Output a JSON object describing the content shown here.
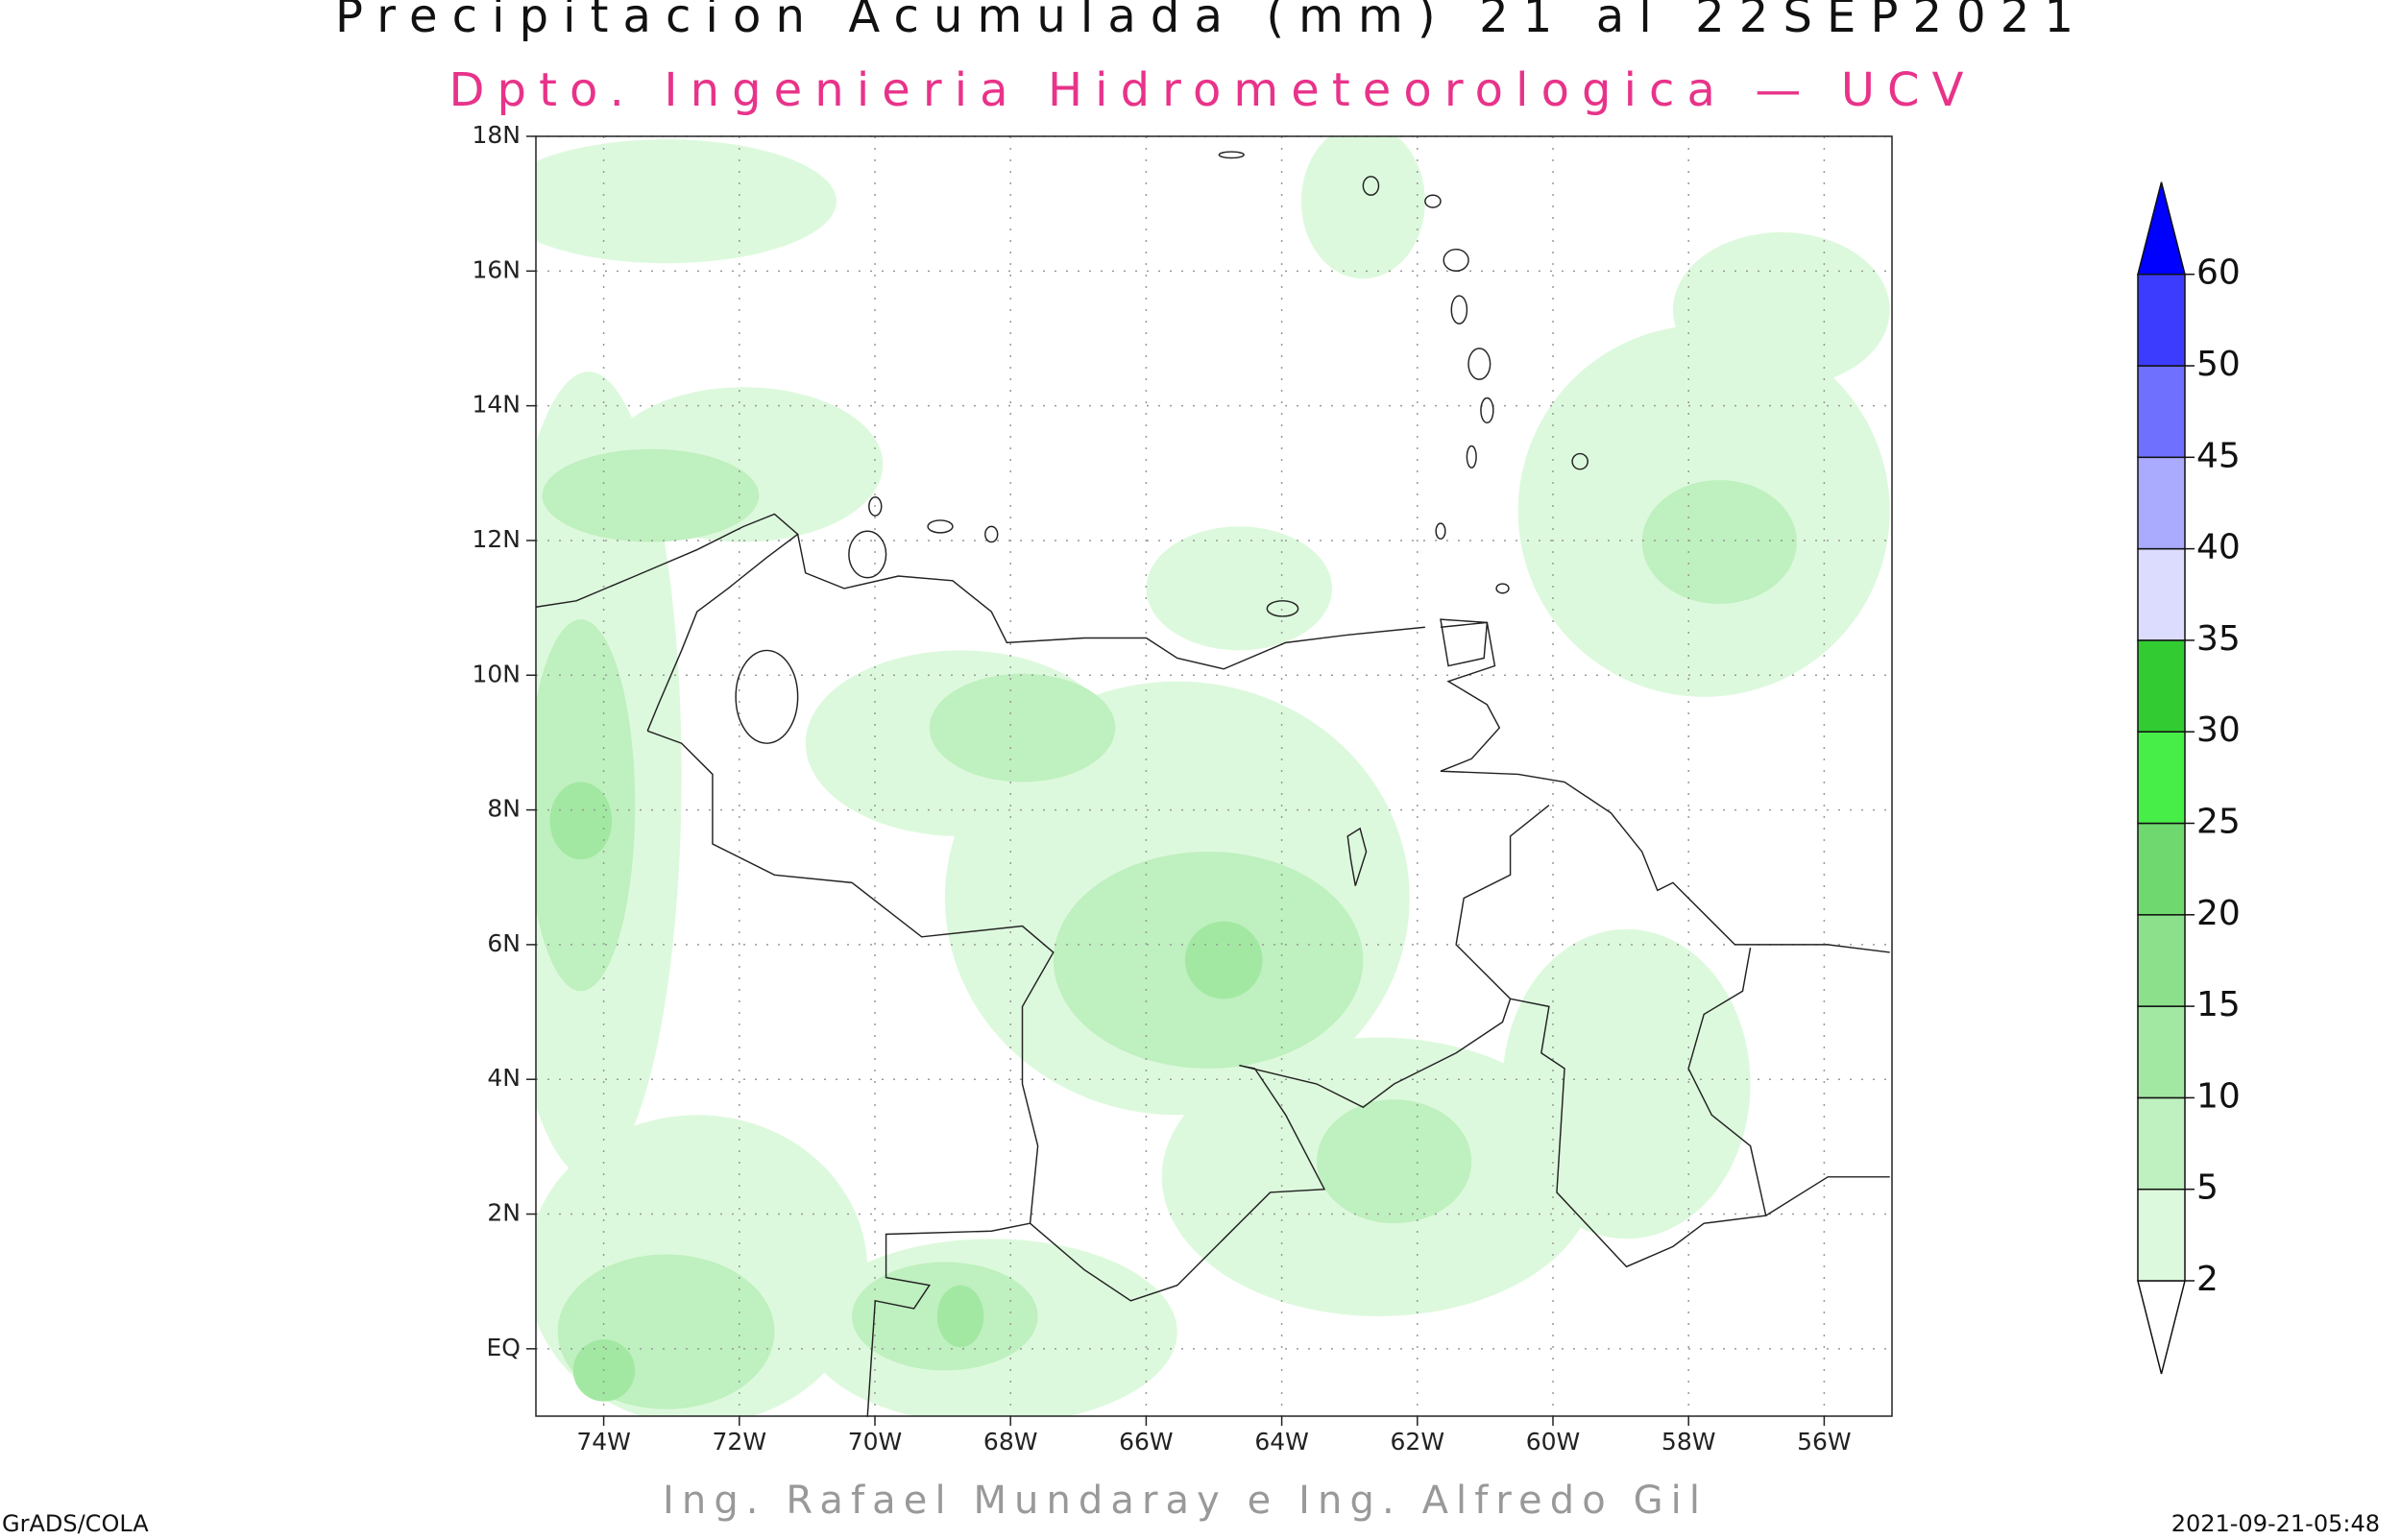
{
  "header": {
    "title": "Precipitacion Acumulada (mm) 21 al 22SEP2021",
    "subtitle": "Dpto. Ingenieria Hidrometeorologica — UCV"
  },
  "map": {
    "xlim": [
      -75,
      -55
    ],
    "ylim": [
      -1,
      18
    ],
    "grid": true,
    "xticks": [
      {
        "value": -74,
        "label": "74W"
      },
      {
        "value": -72,
        "label": "72W"
      },
      {
        "value": -70,
        "label": "70W"
      },
      {
        "value": -68,
        "label": "68W"
      },
      {
        "value": -66,
        "label": "66W"
      },
      {
        "value": -64,
        "label": "64W"
      },
      {
        "value": -62,
        "label": "62W"
      },
      {
        "value": -60,
        "label": "60W"
      },
      {
        "value": -58,
        "label": "58W"
      },
      {
        "value": -56,
        "label": "56W"
      }
    ],
    "yticks": [
      {
        "value": 0,
        "label": "EQ"
      },
      {
        "value": 2,
        "label": "2N"
      },
      {
        "value": 4,
        "label": "4N"
      },
      {
        "value": 6,
        "label": "6N"
      },
      {
        "value": 8,
        "label": "8N"
      },
      {
        "value": 10,
        "label": "10N"
      },
      {
        "value": 12,
        "label": "12N"
      },
      {
        "value": 14,
        "label": "14N"
      },
      {
        "value": 16,
        "label": "16N"
      },
      {
        "value": 18,
        "label": "18N"
      }
    ]
  },
  "colorbar": {
    "levels": [
      2,
      5,
      10,
      15,
      20,
      25,
      30,
      35,
      40,
      45,
      50,
      60
    ],
    "colors": [
      "#ffffff",
      "#ddf9dd",
      "#bff0bf",
      "#a2e8a2",
      "#8ce08c",
      "#6fd86f",
      "#48ee48",
      "#32cc32",
      "#dcdcff",
      "#aaaaff",
      "#7070ff",
      "#3c3cff",
      "#0000ff"
    ]
  },
  "footer": {
    "credit": "Ing. Rafael Mundaray e Ing. Alfredo Gil",
    "left": "GrADS/COLA",
    "right": "2021-09-21-05:48"
  }
}
